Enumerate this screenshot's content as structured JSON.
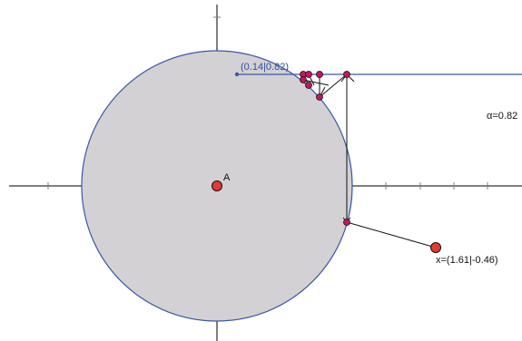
{
  "canvas": {
    "colors": {
      "background": "#ffffff",
      "axis": "#7b7f86",
      "circle_fill": "#d3d1d3",
      "circle_stroke": "#3b57a8",
      "point_fill": "#e53935",
      "point_small_fill": "#c2185b",
      "line_blue": "#3b57a8",
      "line_black": "#111111"
    },
    "labels": {
      "point_A": "A",
      "coord_label": "(0.14|0.82)",
      "alpha_label": "α=0.82",
      "x_label": "x=(1.61|-0.46)"
    },
    "icons": {
      "large_point": "red-point-icon",
      "small_point": "red-small-point-icon"
    }
  }
}
